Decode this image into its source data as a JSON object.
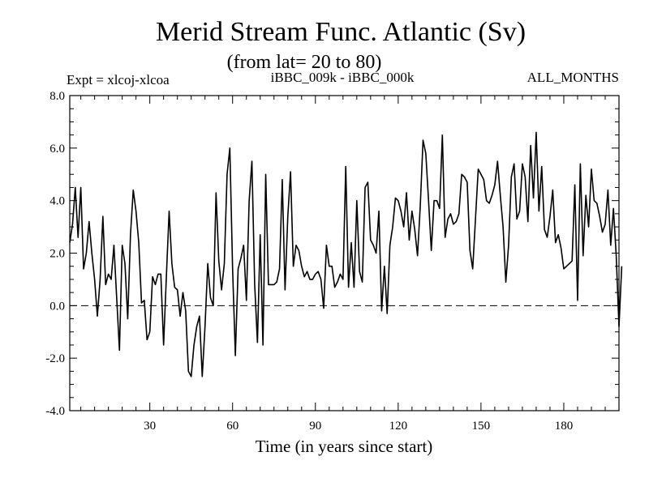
{
  "chart_data": {
    "type": "line",
    "title": "Merid Stream Func. Atlantic (Sv)",
    "subtitle": "(from lat= 20 to 80)",
    "experiment_label": "Expt = xlcoj-xlcoa",
    "comparison_label": "iBBC_009k - iBBC_000k",
    "months_label": "ALL_MONTHS",
    "xlabel": "Time (in years since start)",
    "ylabel": "",
    "xlim": [
      1,
      200
    ],
    "ylim": [
      -4,
      8
    ],
    "x_ticks": [
      30,
      60,
      90,
      120,
      150,
      180
    ],
    "y_ticks": [
      -4,
      -2,
      0,
      2,
      4,
      6,
      8
    ],
    "y_tick_labels": [
      "-4.0",
      "-2.0",
      "0.0",
      "2.0",
      "4.0",
      "6.0",
      "8.0"
    ],
    "zero_line": true,
    "x_start": 1,
    "x_step": 1,
    "series": [
      {
        "name": "iBBC_009k - iBBC_000k",
        "color": "#000000",
        "values": [
          2.4,
          3.1,
          4.5,
          2.6,
          4.5,
          1.4,
          2.0,
          3.2,
          2.0,
          1.0,
          -0.4,
          1.0,
          3.4,
          0.8,
          1.2,
          1.0,
          2.3,
          0.3,
          -1.7,
          2.3,
          1.6,
          -0.5,
          2.7,
          4.4,
          3.6,
          2.4,
          0.1,
          0.2,
          -1.3,
          -1.0,
          1.1,
          0.8,
          1.2,
          1.2,
          -1.5,
          1.1,
          3.6,
          1.6,
          0.7,
          0.6,
          -0.4,
          0.5,
          -0.2,
          -2.5,
          -2.7,
          -1.5,
          -0.8,
          -0.4,
          -2.7,
          -0.8,
          1.6,
          0.3,
          0.0,
          4.3,
          1.7,
          0.6,
          1.6,
          5.0,
          6.0,
          1.4,
          -1.9,
          1.4,
          1.8,
          2.3,
          0.2,
          4.0,
          5.5,
          0.8,
          -1.4,
          2.7,
          -1.5,
          5.0,
          0.8,
          0.8,
          0.8,
          0.9,
          1.4,
          4.8,
          0.6,
          3.4,
          5.1,
          1.5,
          2.3,
          2.1,
          1.5,
          1.1,
          1.3,
          1.0,
          1.0,
          1.2,
          1.3,
          1.0,
          -0.1,
          2.3,
          1.5,
          1.5,
          0.7,
          0.9,
          1.2,
          1.0,
          5.3,
          0.7,
          2.4,
          0.7,
          4.0,
          1.3,
          0.9,
          4.5,
          4.7,
          2.5,
          2.3,
          2.0,
          3.6,
          -0.2,
          1.5,
          -0.3,
          2.3,
          3.0,
          4.1,
          4.0,
          3.6,
          3.0,
          4.3,
          2.5,
          3.6,
          2.9,
          1.9,
          3.8,
          6.3,
          5.8,
          4.0,
          2.1,
          4.0,
          4.0,
          3.7,
          6.5,
          2.6,
          3.3,
          3.5,
          3.1,
          3.2,
          3.5,
          5.0,
          4.9,
          4.7,
          2.1,
          1.4,
          3.3,
          5.2,
          5.0,
          4.8,
          4.0,
          3.9,
          4.2,
          4.6,
          5.5,
          4.2,
          3.0,
          0.9,
          2.3,
          4.9,
          5.4,
          3.3,
          3.6,
          5.4,
          4.9,
          3.2,
          6.1,
          4.1,
          6.6,
          3.6,
          5.3,
          2.9,
          2.6,
          3.4,
          4.4,
          2.4,
          2.7,
          2.2,
          1.4,
          1.5,
          1.6,
          1.7,
          4.6,
          0.2,
          5.4,
          1.9,
          4.2,
          3.0,
          5.2,
          4.0,
          3.9,
          3.4,
          2.8,
          3.1,
          4.4,
          2.3,
          3.7,
          1.9,
          -0.8,
          1.5
        ]
      }
    ]
  }
}
